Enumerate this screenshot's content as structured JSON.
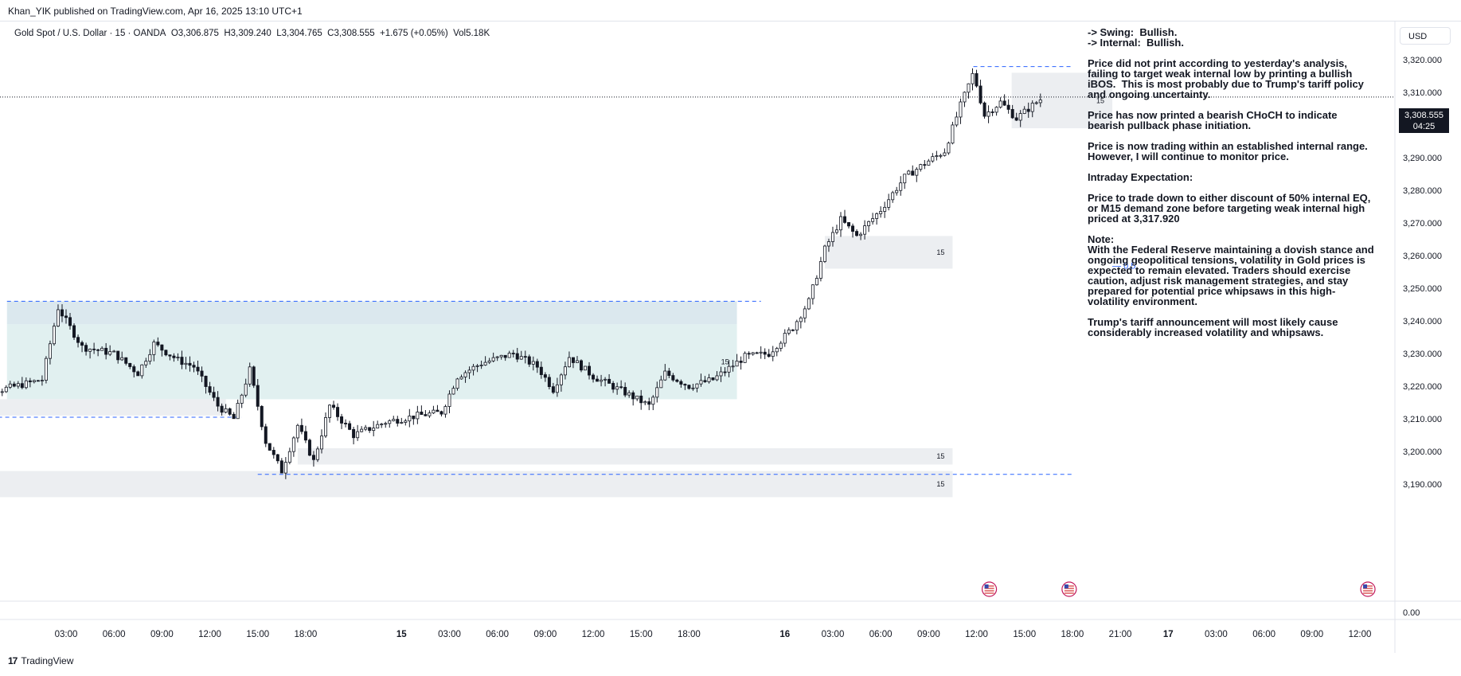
{
  "header": {
    "publisher": "Khan_YIK published on TradingView.com, Apr 16, 2025 13:10 UTC+1"
  },
  "symbol": {
    "title": "Gold Spot / U.S. Dollar · 15 · OANDA",
    "open": "O3,306.875",
    "high": "H3,309.240",
    "low": "L3,304.765",
    "close": "C3,308.555",
    "change": "+1.675 (+0.05%)",
    "volume": "Vol5.18K"
  },
  "currency": "USD",
  "last_price": {
    "value": "3,308.555",
    "countdown": "04:25"
  },
  "notes": "-> Swing:  Bullish.\n-> Internal:  Bullish.\n\nPrice did not print according to yesterday's analysis, failing to target weak internal low by printing a bullish iBOS.  This is most probably due to Trump's tariff policy and ongoing uncertainty.\n\nPrice has now printed a bearish CHoCH to indicate bearish pullback phase initiation.\n\nPrice is now trading within an established internal range.  However, I will continue to monitor price.\n\nIntraday Expectation:\n\nPrice to trade down to either discount of 50% internal EQ, or M15 demand zone before targeting weak internal high priced at 3,317.920\n\nNote:\nWith the Federal Reserve maintaining a dovish stance and ongoing geopolitical tensions, volatility in Gold prices is expected to remain elevated. Traders should exercise caution, adjust risk management strategies, and stay prepared for potential price whipsaws in this high-volatility environment.\n\nTrump's tariff announcement will most likely cause considerably increased volatility and whipsaws.",
  "footer": {
    "brand": "TradingView",
    "logo": "17"
  },
  "chart_data": {
    "type": "candlestick",
    "instrument": "Gold Spot / U.S. Dollar",
    "interval": "15",
    "ylim": [
      3182,
      3324
    ],
    "y_ticks": [
      "3,190.000",
      "3,200.000",
      "3,210.000",
      "3,220.000",
      "3,230.000",
      "3,240.000",
      "3,250.000",
      "3,260.000",
      "3,270.000",
      "3,280.000",
      "3,290.000",
      "3,300.000",
      "3,310.000",
      "3,320.000"
    ],
    "y_tick_values": [
      3190,
      3200,
      3210,
      3220,
      3230,
      3240,
      3250,
      3260,
      3270,
      3280,
      3290,
      3300,
      3310,
      3320
    ],
    "volume_axis_label": "0.00",
    "x_ticks": [
      {
        "label": "03:00",
        "h": 3
      },
      {
        "label": "06:00",
        "h": 6
      },
      {
        "label": "09:00",
        "h": 9
      },
      {
        "label": "12:00",
        "h": 12
      },
      {
        "label": "15:00",
        "h": 15
      },
      {
        "label": "18:00",
        "h": 18
      },
      {
        "label": "15",
        "h": 24
      },
      {
        "label": "03:00",
        "h": 27
      },
      {
        "label": "06:00",
        "h": 30
      },
      {
        "label": "09:00",
        "h": 33
      },
      {
        "label": "12:00",
        "h": 36
      },
      {
        "label": "15:00",
        "h": 39
      },
      {
        "label": "18:00",
        "h": 42
      },
      {
        "label": "16",
        "h": 48
      },
      {
        "label": "03:00",
        "h": 51
      },
      {
        "label": "06:00",
        "h": 54
      },
      {
        "label": "09:00",
        "h": 57
      },
      {
        "label": "12:00",
        "h": 60
      },
      {
        "label": "15:00",
        "h": 63
      },
      {
        "label": "18:00",
        "h": 66
      },
      {
        "label": "21:00",
        "h": 69
      },
      {
        "label": "17",
        "h": 72
      },
      {
        "label": "03:00",
        "h": 75
      },
      {
        "label": "06:00",
        "h": 78
      },
      {
        "label": "09:00",
        "h": 81
      },
      {
        "label": "12:00",
        "h": 84
      }
    ],
    "x_range_hours": [
      -3.5,
      88.5
    ],
    "price_path": [
      [
        -3.5,
        3219
      ],
      [
        -1.0,
        3219
      ],
      [
        1.5,
        3222
      ],
      [
        2.5,
        3244
      ],
      [
        4.0,
        3232
      ],
      [
        6.0,
        3230
      ],
      [
        7.5,
        3224
      ],
      [
        8.5,
        3233
      ],
      [
        10.0,
        3228
      ],
      [
        11.0,
        3226
      ],
      [
        12.5,
        3214
      ],
      [
        13.5,
        3210
      ],
      [
        14.5,
        3225
      ],
      [
        15.5,
        3203
      ],
      [
        16.5,
        3194
      ],
      [
        17.5,
        3208
      ],
      [
        18.5,
        3197
      ],
      [
        19.5,
        3214
      ],
      [
        21.0,
        3205
      ],
      [
        23.0,
        3209
      ],
      [
        25.0,
        3211
      ],
      [
        26.5,
        3212
      ],
      [
        27.5,
        3223
      ],
      [
        29.0,
        3227
      ],
      [
        31.0,
        3230
      ],
      [
        32.5,
        3226
      ],
      [
        33.5,
        3219
      ],
      [
        34.5,
        3229
      ],
      [
        36.0,
        3223
      ],
      [
        38.0,
        3218
      ],
      [
        39.5,
        3214
      ],
      [
        40.5,
        3224
      ],
      [
        42.0,
        3220
      ],
      [
        43.5,
        3222
      ],
      [
        45.5,
        3229
      ],
      [
        47.0,
        3230
      ],
      [
        48.5,
        3238
      ],
      [
        49.5,
        3246
      ],
      [
        50.5,
        3262
      ],
      [
        51.5,
        3271
      ],
      [
        52.5,
        3266
      ],
      [
        54.0,
        3274
      ],
      [
        55.5,
        3284
      ],
      [
        57.0,
        3289
      ],
      [
        58.0,
        3292
      ],
      [
        59.0,
        3306
      ],
      [
        59.8,
        3316
      ],
      [
        60.5,
        3303
      ],
      [
        61.5,
        3307
      ],
      [
        62.5,
        3302
      ],
      [
        63.5,
        3306
      ],
      [
        64.2,
        3308.6
      ]
    ],
    "zones": [
      {
        "label": "15",
        "from_h": -0.7,
        "to_h": 45.0,
        "top": 3239,
        "bottom": 3216,
        "fill": "#e1f0f0"
      },
      {
        "label": "",
        "from_h": -0.7,
        "to_h": 45.0,
        "top": 3246,
        "bottom": 3239,
        "fill": "#dbe8ee"
      },
      {
        "label": "",
        "from_h": -3.5,
        "to_h": 13.0,
        "top": 3216,
        "bottom": 3211,
        "fill": "#eceef1"
      },
      {
        "label": "15",
        "from_h": 17.5,
        "to_h": 58.5,
        "top": 3201,
        "bottom": 3196,
        "fill": "#eceef1"
      },
      {
        "label": "15",
        "from_h": -3.5,
        "to_h": 58.5,
        "top": 3194,
        "bottom": 3186,
        "fill": "#eceef1"
      },
      {
        "label": "15",
        "from_h": 50.5,
        "to_h": 58.5,
        "top": 3266,
        "bottom": 3256,
        "fill": "#eceef1"
      },
      {
        "label": "15",
        "from_h": 62.2,
        "to_h": 68.5,
        "top": 3316,
        "bottom": 3299,
        "fill": "#eceef1"
      }
    ],
    "levels": [
      {
        "from_h": -0.7,
        "to_h": 46.5,
        "price": 3246,
        "color": "#2962ff"
      },
      {
        "from_h": -3.5,
        "to_h": 14.0,
        "price": 3210.5,
        "color": "#2962ff"
      },
      {
        "from_h": 15.0,
        "to_h": 66.0,
        "price": 3193,
        "color": "#2962ff"
      },
      {
        "from_h": 59.8,
        "to_h": 66.0,
        "price": 3317.9,
        "color": "#2962ff"
      }
    ],
    "eq_label": {
      "text": "— 0.5",
      "price": 3257,
      "h": 68.5,
      "color": "#2962ff"
    },
    "last_price_line": 3308.555,
    "event_markers_h": [
      60.8,
      65.8,
      84.5
    ],
    "colors": {
      "up": "#ffffff",
      "down": "#131722",
      "wick": "#131722",
      "grid": "#f0f3fa",
      "text": "#131722"
    }
  }
}
